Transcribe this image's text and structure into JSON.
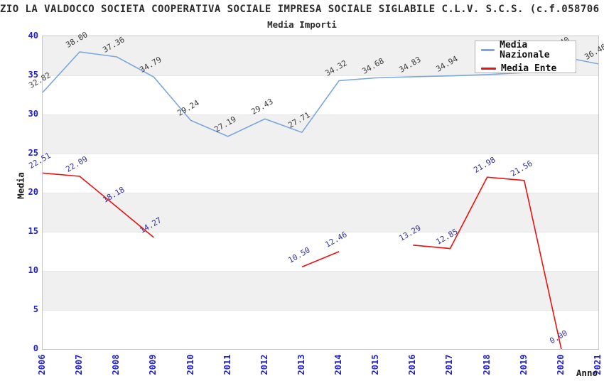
{
  "title": "ZIO LA VALDOCCO SOCIETA COOPERATIVA SOCIALE IMPRESA SOCIALE SIGLABILE C.L.V. S.C.S. (c.f.058706",
  "subtitle": "Media Importi",
  "axes": {
    "x_label": "Anno",
    "y_label": "Media",
    "y_ticks": [
      0,
      5,
      10,
      15,
      20,
      25,
      30,
      35,
      40
    ],
    "x_ticks": [
      "2006",
      "2007",
      "2008",
      "2009",
      "2010",
      "2011",
      "2012",
      "2013",
      "2014",
      "2015",
      "2016",
      "2017",
      "2018",
      "2019",
      "2020",
      "2021"
    ]
  },
  "legend": {
    "entries": [
      {
        "label": "Media Nazionale",
        "color": "#7ba7dc"
      },
      {
        "label": "Media Ente",
        "color": "#ee1111"
      }
    ],
    "position": "top-right"
  },
  "colors": {
    "tick_label_blue": "#2121cd",
    "band_gray": "#f0f0f0",
    "nazionale_line": "#7ba7dc",
    "ente_line": "#ee1111",
    "nazionale_data_label": "#3d3d3d",
    "ente_data_label": "#333399"
  },
  "chart_data": {
    "type": "line",
    "title": "Media Importi",
    "xlabel": "Anno",
    "ylabel": "Media",
    "ylim": [
      0,
      40
    ],
    "grid": "alternating horizontal gray bands every 5 units",
    "legend_position": "top-right",
    "categories": [
      2006,
      2007,
      2008,
      2009,
      2010,
      2011,
      2012,
      2013,
      2014,
      2015,
      2016,
      2017,
      2018,
      2019,
      2020,
      2021
    ],
    "series": [
      {
        "name": "Media Nazionale",
        "color": "#7ba7dc",
        "label_color": "#3d3d3d",
        "values": [
          32.82,
          38.0,
          37.36,
          34.79,
          29.24,
          27.19,
          29.43,
          27.71,
          34.32,
          34.68,
          34.83,
          34.94,
          35.1,
          35.35,
          37.4,
          36.46
        ],
        "labels": [
          "32.82",
          "38.00",
          "37.36",
          "34.79",
          "29.24",
          "27.19",
          "29.43",
          "27.71",
          "34.32",
          "34.68",
          "34.83",
          "34.94",
          "",
          "",
          "37.40",
          "36.46"
        ],
        "note": "2018-2020 labels hidden behind legend; their values estimated from line position"
      },
      {
        "name": "Media Ente",
        "color": "#ee1111",
        "label_color": "#333399",
        "values": [
          22.51,
          22.09,
          18.18,
          14.27,
          null,
          null,
          null,
          10.5,
          12.46,
          null,
          13.29,
          12.85,
          21.98,
          21.56,
          0.0,
          null
        ],
        "labels": [
          "22.51",
          "22.09",
          "18.18",
          "14.27",
          null,
          null,
          null,
          "10.50",
          "12.46",
          null,
          "13.29",
          "12.85",
          "21.98",
          "21.56",
          "0.00",
          null
        ]
      }
    ]
  }
}
